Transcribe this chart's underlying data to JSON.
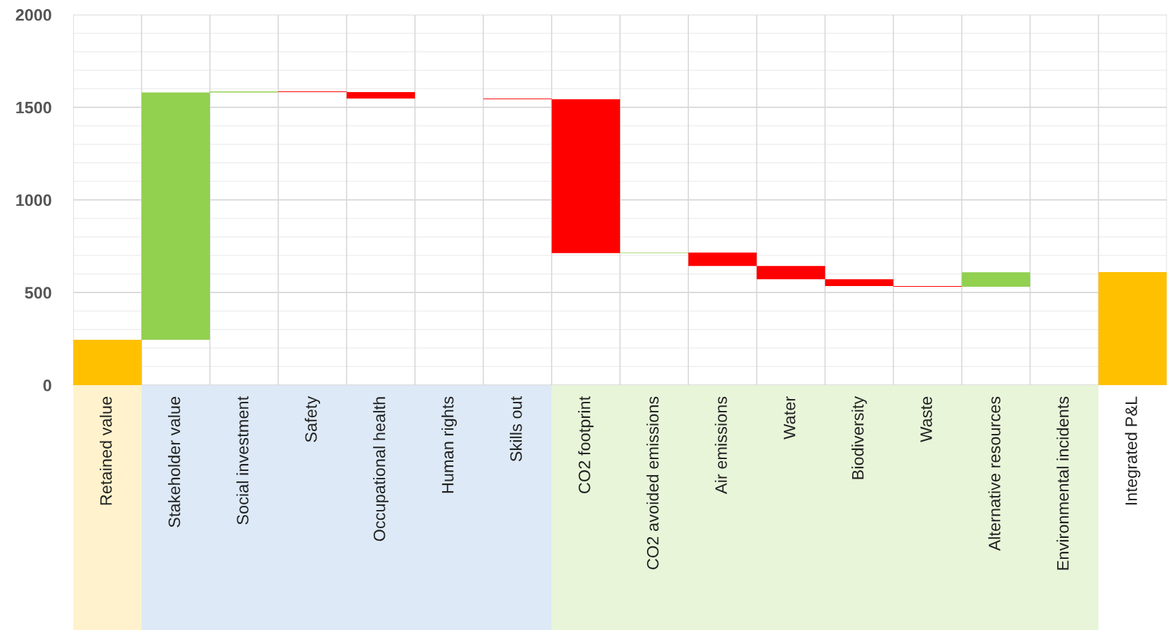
{
  "chart_data": {
    "type": "bar",
    "categories": [
      "Retained value",
      "Stakeholder value",
      "Social investment",
      "Safety",
      "Occupational health",
      "Human rights",
      "Skills out",
      "CO2 footprint",
      "CO2 avoided emissions",
      "Air emissions",
      "Water",
      "Biodiversity",
      "Waste",
      "Alternative resources",
      "Environmental incidents",
      "Integrated P&L"
    ],
    "base": [
      0,
      245,
      1580,
      1586,
      1582,
      null,
      1547,
      1543,
      713,
      716,
      643,
      572,
      535,
      531,
      null,
      0
    ],
    "values": [
      245,
      1335,
      6,
      -4,
      -35,
      0,
      -4,
      -830,
      3,
      -73,
      -71,
      -37,
      -4,
      78,
      0,
      610
    ],
    "colors": [
      "#ffc000",
      "#92d050",
      "#92d050",
      "#ff0000",
      "#ff0000",
      "#ff0000",
      "#ff0000",
      "#ff0000",
      "#92d050",
      "#ff0000",
      "#ff0000",
      "#ff0000",
      "#ff0000",
      "#92d050",
      "#92d050",
      "#ffc000"
    ],
    "ylim": [
      0,
      2000
    ],
    "yticks": [
      0,
      {
        "value": 100,
        "label": null
      },
      {
        "value": 200,
        "label": null
      },
      {
        "value": 300,
        "label": null
      },
      {
        "value": 400,
        "label": null
      },
      500,
      {
        "value": 600,
        "label": null
      },
      {
        "value": 700,
        "label": null
      },
      {
        "value": 800,
        "label": null
      },
      {
        "value": 900,
        "label": null
      },
      1000,
      {
        "value": 1100,
        "label": null
      },
      {
        "value": 1200,
        "label": null
      },
      {
        "value": 1300,
        "label": null
      },
      {
        "value": 1400,
        "label": null
      },
      1500,
      {
        "value": 1600,
        "label": null
      },
      {
        "value": 1700,
        "label": null
      },
      {
        "value": 1800,
        "label": null
      },
      {
        "value": 1900,
        "label": null
      },
      2000
    ],
    "grid": true
  }
}
